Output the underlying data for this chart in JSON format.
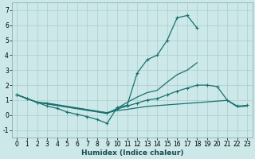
{
  "title": "",
  "xlabel": "Humidex (Indice chaleur)",
  "bg_color": "#cce8e8",
  "grid_color": "#aacccc",
  "line_color": "#1a7070",
  "xlim": [
    -0.5,
    23.5
  ],
  "ylim": [
    -1.5,
    7.5
  ],
  "yticks": [
    -1,
    0,
    1,
    2,
    3,
    4,
    5,
    6,
    7
  ],
  "xticks": [
    0,
    1,
    2,
    3,
    4,
    5,
    6,
    7,
    8,
    9,
    10,
    11,
    12,
    13,
    14,
    15,
    16,
    17,
    18,
    19,
    20,
    21,
    22,
    23
  ],
  "line1_x": [
    0,
    1,
    2,
    3,
    4,
    5,
    6,
    7,
    8,
    9,
    10,
    11,
    12,
    13,
    14,
    15,
    16,
    17,
    18
  ],
  "line1_y": [
    1.35,
    1.1,
    0.85,
    0.6,
    0.45,
    0.2,
    0.05,
    -0.1,
    -0.3,
    -0.55,
    0.5,
    0.65,
    2.8,
    3.7,
    4.0,
    5.0,
    6.5,
    6.65,
    5.8
  ],
  "line2_x": [
    0,
    1,
    2,
    9,
    10,
    11,
    12,
    13,
    14,
    15,
    16,
    17,
    18
  ],
  "line2_y": [
    1.35,
    1.1,
    0.85,
    0.1,
    0.45,
    0.85,
    1.2,
    1.5,
    1.65,
    2.2,
    2.7,
    3.0,
    3.5
  ],
  "line3_x": [
    0,
    1,
    2,
    3,
    9,
    10,
    11,
    12,
    13,
    14,
    15,
    16,
    17,
    18,
    19,
    20,
    21,
    22,
    23
  ],
  "line3_y": [
    1.35,
    1.1,
    0.85,
    0.8,
    0.15,
    0.4,
    0.6,
    0.8,
    1.0,
    1.1,
    1.35,
    1.6,
    1.8,
    2.0,
    2.0,
    1.9,
    1.0,
    0.6,
    0.65
  ],
  "line4_x": [
    0,
    1,
    2,
    9,
    10,
    11,
    12,
    13,
    14,
    15,
    16,
    17,
    18,
    19,
    20,
    21,
    22,
    23
  ],
  "line4_y": [
    1.35,
    1.1,
    0.85,
    0.15,
    0.3,
    0.38,
    0.48,
    0.58,
    0.63,
    0.68,
    0.73,
    0.78,
    0.83,
    0.88,
    0.93,
    0.98,
    0.55,
    0.6
  ],
  "tick_fontsize": 5.5,
  "xlabel_fontsize": 6.5,
  "xlabel_fontweight": "bold"
}
